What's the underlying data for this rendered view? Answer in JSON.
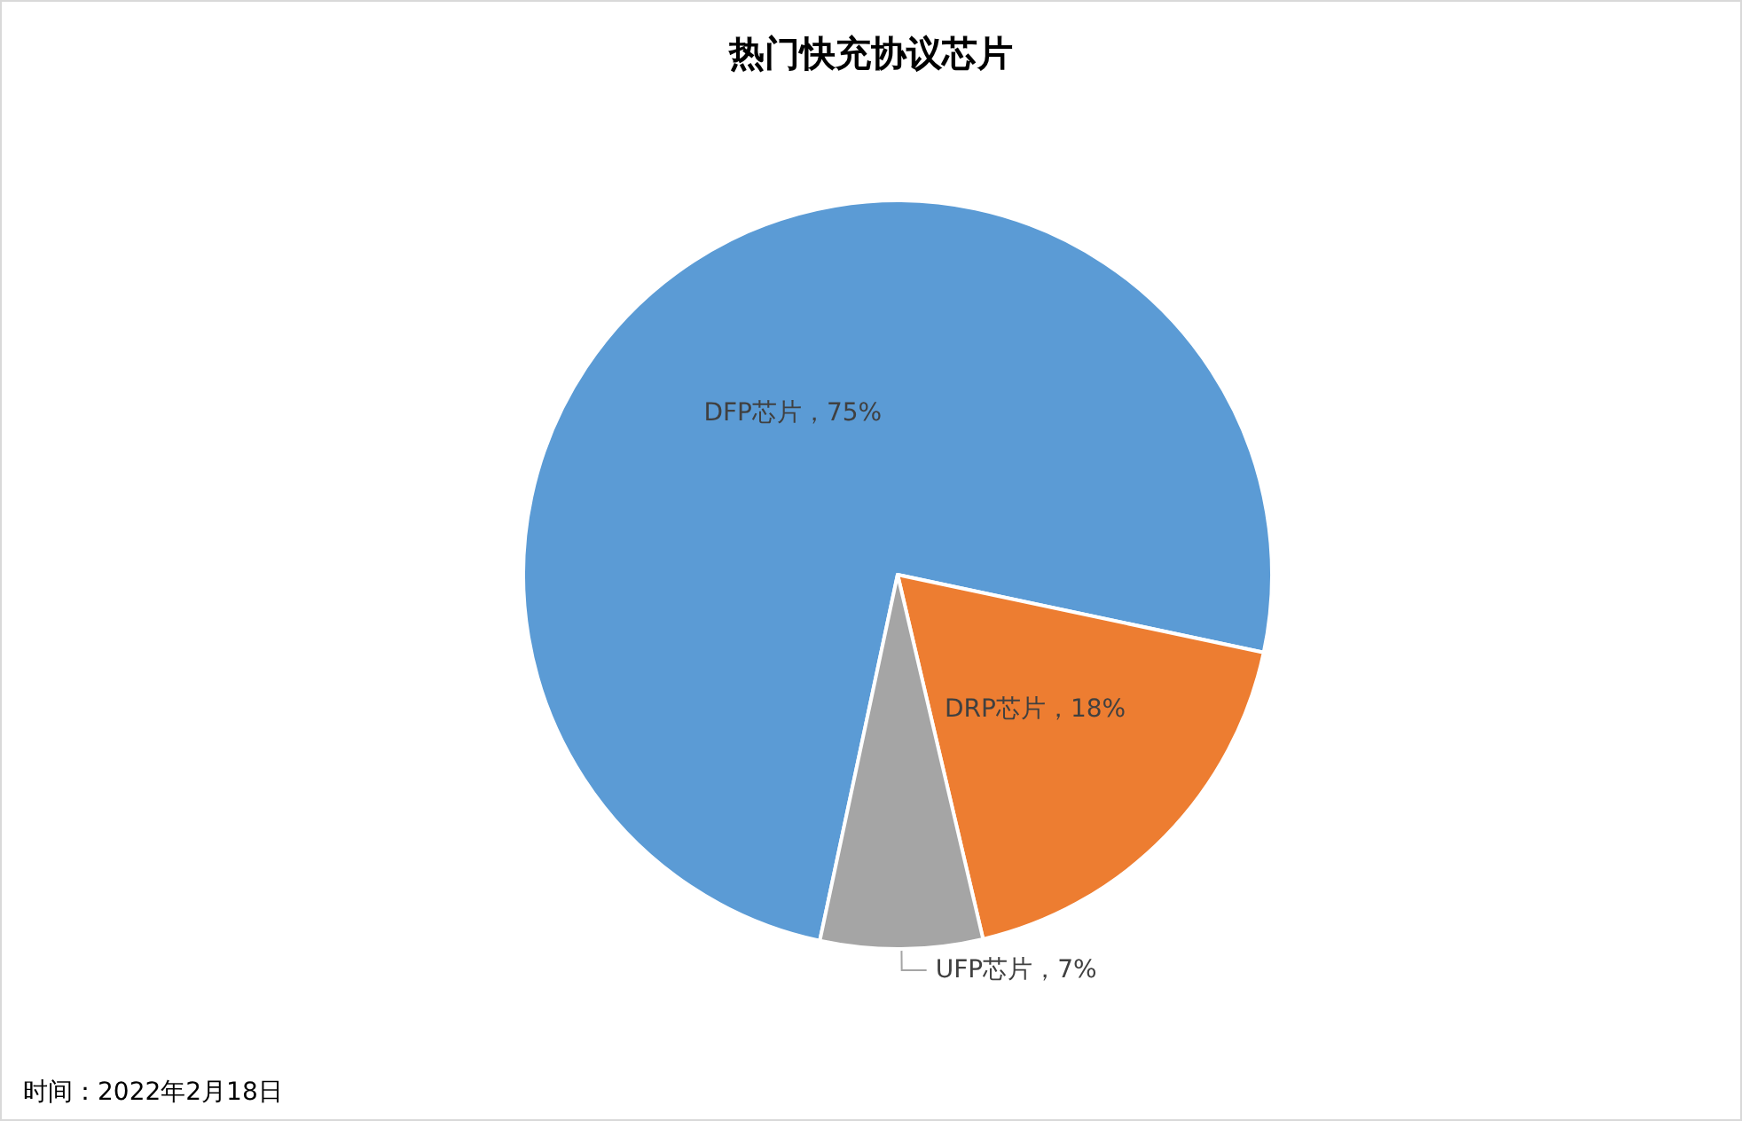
{
  "chart_data": {
    "type": "pie",
    "title": "热门快充协议芯片",
    "categories": [
      "DFP芯片",
      "DRP芯片",
      "UFP芯片"
    ],
    "values": [
      75,
      18,
      7
    ],
    "colors": [
      "#5b9bd5",
      "#ed7d31",
      "#a5a5a5"
    ],
    "value_labels": [
      "75%",
      "18%",
      "7%"
    ],
    "legend": false,
    "annotations": [
      "时间：2022年2月18日"
    ]
  }
}
